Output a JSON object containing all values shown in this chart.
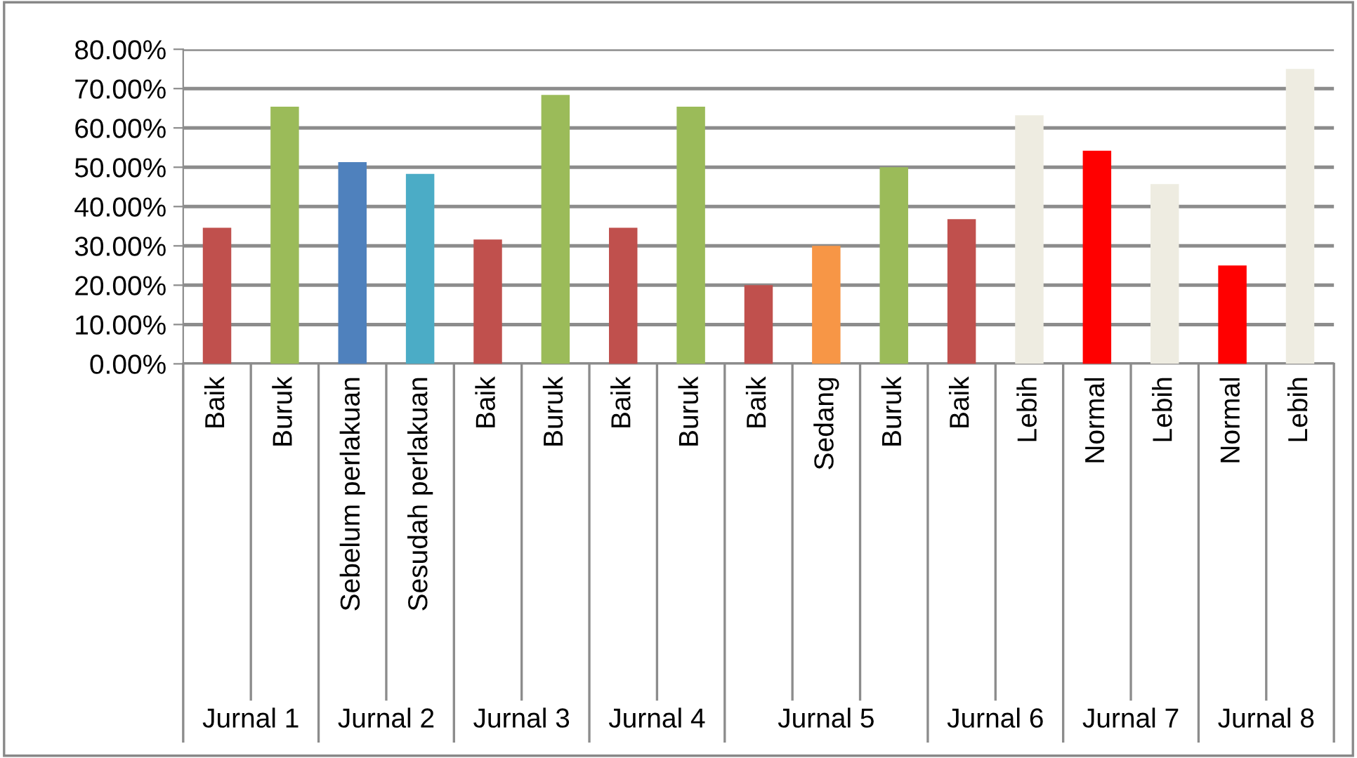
{
  "chart_data": {
    "type": "bar",
    "categories": [
      "Baik",
      "Buruk",
      "Sebelum perlakuan",
      "Sesudah perlakuan",
      "Baik",
      "Buruk",
      "Baik",
      "Buruk",
      "Baik",
      "Sedang",
      "Buruk",
      "Baik",
      "Lebih",
      "Normal",
      "Lebih",
      "Normal",
      "Lebih"
    ],
    "values": [
      34.6,
      65.4,
      51.3,
      48.3,
      31.6,
      68.4,
      34.6,
      65.4,
      20,
      30,
      50,
      36.8,
      63.2,
      54.2,
      45.7,
      25,
      75
    ],
    "colors": [
      "#c0504d",
      "#9bbb59",
      "#4f81bd",
      "#4bacc6",
      "#c0504d",
      "#9bbb59",
      "#c0504d",
      "#9bbb59",
      "#c0504d",
      "#f79646",
      "#9bbb59",
      "#c0504d",
      "#eeece1",
      "#ff0000",
      "#eeece1",
      "#ff0000",
      "#eeece1"
    ],
    "ylim": [
      0,
      80
    ],
    "yticks": [
      {
        "value": 0,
        "label": "0.00%"
      },
      {
        "value": 10,
        "label": "10.00%"
      },
      {
        "value": 20,
        "label": "20.00%"
      },
      {
        "value": 30,
        "label": "30.00%"
      },
      {
        "value": 40,
        "label": "40.00%"
      },
      {
        "value": 50,
        "label": "50.00%"
      },
      {
        "value": 60,
        "label": "60.00%"
      },
      {
        "value": 70,
        "label": "70.00%"
      },
      {
        "value": 80,
        "label": "80.00%"
      }
    ],
    "grid": "y",
    "annotations": [
      "Jurnal 1",
      "Jurnal 2",
      "Jurnal 3",
      "Jurnal 4",
      "Jurnal 5",
      "Jurnal 6",
      "Jurnal 7",
      "Jurnal 8"
    ]
  }
}
